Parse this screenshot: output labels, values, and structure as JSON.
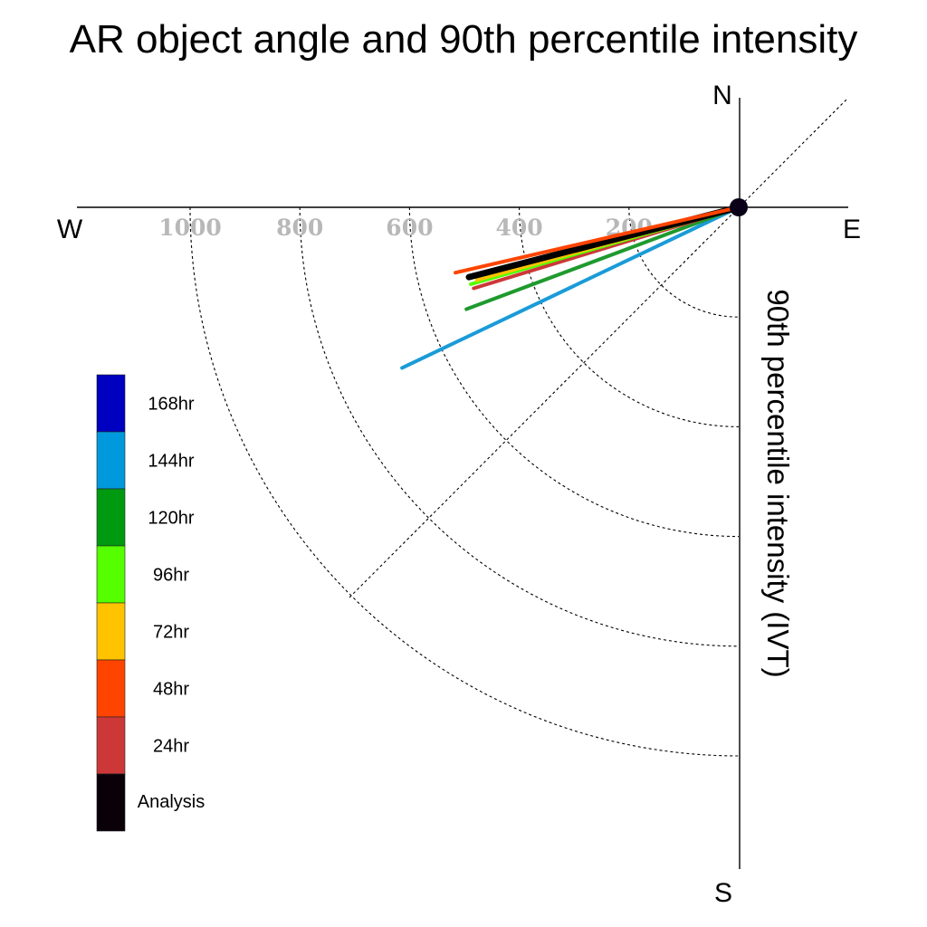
{
  "chart_data": {
    "type": "polar-line",
    "title": "AR object angle and 90th percentile intensity",
    "ylabel": "90th percentile intensity (IVT)",
    "compass": {
      "north": "N",
      "south": "S",
      "east": "E",
      "west": "W"
    },
    "radial_ticks": [
      200,
      400,
      600,
      800,
      1000
    ],
    "radial_tick_labels": [
      "200",
      "400",
      "600",
      "800",
      "1000"
    ],
    "radial_range": [
      0,
      1200
    ],
    "grid": true,
    "legend_placement": "left",
    "legend": [
      {
        "label": "168hr",
        "color": "#0000c0"
      },
      {
        "label": "144hr",
        "color": "#0099dd"
      },
      {
        "label": "120hr",
        "color": "#009a10"
      },
      {
        "label": "96hr",
        "color": "#55ff00"
      },
      {
        "label": "72hr",
        "color": "#ffc300"
      },
      {
        "label": "48hr",
        "color": "#ff4400"
      },
      {
        "label": "24hr",
        "color": "#cc3838"
      },
      {
        "label": "Analysis",
        "color": "#0a0008"
      }
    ],
    "series": [
      {
        "name": "144hr",
        "angle_deg": 244.5,
        "intensity": 680,
        "color": "#1a9bd8",
        "width": 4
      },
      {
        "name": "120hr",
        "angle_deg": 249.5,
        "intensity": 530,
        "color": "#1f9a2e",
        "width": 4
      },
      {
        "name": "24hr",
        "angle_deg": 253,
        "intensity": 505,
        "color": "#cc3838",
        "width": 4
      },
      {
        "name": "96hr",
        "angle_deg": 254,
        "intensity": 508,
        "color": "#55ff00",
        "width": 4
      },
      {
        "name": "72hr",
        "angle_deg": 254.5,
        "intensity": 495,
        "color": "#ffc300",
        "width": 4
      },
      {
        "name": "Analysis",
        "angle_deg": 255.5,
        "intensity": 508,
        "color": "#000000",
        "width": 7
      },
      {
        "name": "48hr",
        "angle_deg": 257,
        "intensity": 530,
        "color": "#ff4400",
        "width": 4
      }
    ]
  }
}
